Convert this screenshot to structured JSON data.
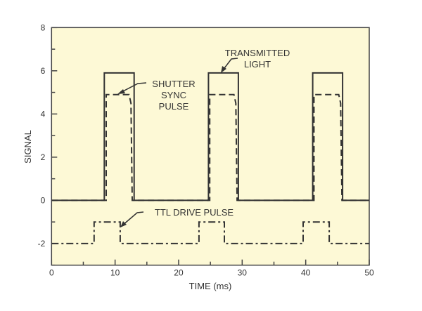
{
  "chart_data": {
    "type": "line",
    "title": "",
    "xlabel": "TIME (ms)",
    "ylabel": "SIGNAL",
    "xlim": [
      0,
      50
    ],
    "ylim": [
      -3,
      8
    ],
    "xticks": [
      0,
      10,
      20,
      30,
      40,
      50
    ],
    "yticks": [
      -2,
      0,
      2,
      4,
      6,
      8
    ],
    "grid": false,
    "background_color": "#fdf9d6",
    "line_color": "#333333",
    "series": [
      {
        "style": "solid",
        "x": [
          0,
          8.3,
          8.3,
          13.0,
          13.0,
          24.7,
          24.7,
          29.4,
          29.4,
          41.1,
          41.1,
          45.8,
          45.8,
          50
        ],
        "y": [
          0,
          0,
          5.9,
          5.9,
          0,
          0,
          5.9,
          5.9,
          0,
          0,
          5.9,
          5.9,
          0,
          0
        ]
      },
      {
        "style": "dashed",
        "x": [
          0,
          8.6,
          8.6,
          12.2,
          12.5,
          12.7,
          24.9,
          24.9,
          28.7,
          29.0,
          29.2,
          41.3,
          41.3,
          45.2,
          45.5,
          45.7,
          50
        ],
        "y": [
          0,
          0,
          4.9,
          4.9,
          4.5,
          0,
          0,
          4.9,
          4.9,
          4.5,
          0,
          0,
          4.9,
          4.9,
          4.5,
          0,
          0
        ]
      },
      {
        "style": "dashdot",
        "x": [
          0,
          6.7,
          6.7,
          10.8,
          10.8,
          23.2,
          23.2,
          27.2,
          27.2,
          39.6,
          39.6,
          43.7,
          43.7,
          50
        ],
        "y": [
          -2,
          -2,
          -1,
          -1,
          -2,
          -2,
          -1,
          -1,
          -2,
          -2,
          -1,
          -1,
          -2,
          -2
        ]
      }
    ],
    "annotations": [
      {
        "lines": [
          "TRANSMITTED",
          "LIGHT"
        ]
      },
      {
        "lines": [
          "SHUTTER",
          "SYNC",
          "PULSE"
        ]
      },
      {
        "lines": [
          "TTL DRIVE PULSE"
        ]
      }
    ]
  }
}
